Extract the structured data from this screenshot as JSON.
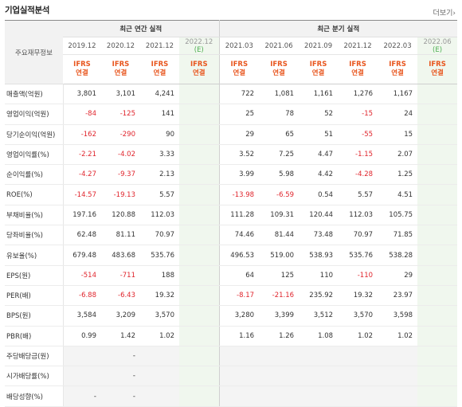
{
  "title": "기업실적분석",
  "more_label": "더보기",
  "section_annual": "최근 연간 실적",
  "section_quarter": "최근 분기 실적",
  "label_header": "주요재무정보",
  "annual_periods": [
    "2019.12",
    "2020.12",
    "2021.12",
    "2022.12"
  ],
  "quarter_periods": [
    "2021.03",
    "2021.06",
    "2021.09",
    "2021.12",
    "2022.03",
    "2022.06"
  ],
  "estimate_mark": "(E)",
  "ifrs_label": "IFRS",
  "consolidated_label": "연결",
  "rows": [
    {
      "label": "매출액(억원)",
      "annual": [
        "3,801",
        "3,101",
        "4,241",
        ""
      ],
      "quarter": [
        "722",
        "1,081",
        "1,161",
        "1,276",
        "1,167",
        ""
      ]
    },
    {
      "label": "영업이익(억원)",
      "annual": [
        "-84",
        "-125",
        "141",
        ""
      ],
      "quarter": [
        "25",
        "78",
        "52",
        "-15",
        "24",
        ""
      ]
    },
    {
      "label": "당기순이익(억원)",
      "annual": [
        "-162",
        "-290",
        "90",
        ""
      ],
      "quarter": [
        "29",
        "65",
        "51",
        "-55",
        "15",
        ""
      ]
    },
    {
      "label": "영업이익률(%)",
      "annual": [
        "-2.21",
        "-4.02",
        "3.33",
        ""
      ],
      "quarter": [
        "3.52",
        "7.25",
        "4.47",
        "-1.15",
        "2.07",
        ""
      ]
    },
    {
      "label": "순이익률(%)",
      "annual": [
        "-4.27",
        "-9.37",
        "2.13",
        ""
      ],
      "quarter": [
        "3.99",
        "5.98",
        "4.42",
        "-4.28",
        "1.25",
        ""
      ]
    },
    {
      "label": "ROE(%)",
      "annual": [
        "-14.57",
        "-19.13",
        "5.57",
        ""
      ],
      "quarter": [
        "-13.98",
        "-6.59",
        "0.54",
        "5.57",
        "4.51",
        ""
      ]
    },
    {
      "label": "부채비율(%)",
      "annual": [
        "197.16",
        "120.88",
        "112.03",
        ""
      ],
      "quarter": [
        "111.28",
        "109.31",
        "120.44",
        "112.03",
        "105.75",
        ""
      ]
    },
    {
      "label": "당좌비율(%)",
      "annual": [
        "62.48",
        "81.11",
        "70.97",
        ""
      ],
      "quarter": [
        "74.46",
        "81.44",
        "73.48",
        "70.97",
        "71.85",
        ""
      ]
    },
    {
      "label": "유보율(%)",
      "annual": [
        "679.48",
        "483.68",
        "535.76",
        ""
      ],
      "quarter": [
        "496.53",
        "519.00",
        "538.93",
        "535.76",
        "538.28",
        ""
      ]
    },
    {
      "label": "EPS(원)",
      "annual": [
        "-514",
        "-711",
        "188",
        ""
      ],
      "quarter": [
        "64",
        "125",
        "110",
        "-110",
        "29",
        ""
      ]
    },
    {
      "label": "PER(배)",
      "annual": [
        "-6.88",
        "-6.43",
        "19.32",
        ""
      ],
      "quarter": [
        "-8.17",
        "-21.16",
        "235.92",
        "19.32",
        "23.97",
        ""
      ]
    },
    {
      "label": "BPS(원)",
      "annual": [
        "3,584",
        "3,209",
        "3,570",
        ""
      ],
      "quarter": [
        "3,280",
        "3,399",
        "3,512",
        "3,570",
        "3,598",
        ""
      ]
    },
    {
      "label": "PBR(배)",
      "annual": [
        "0.99",
        "1.42",
        "1.02",
        ""
      ],
      "quarter": [
        "1.16",
        "1.26",
        "1.08",
        "1.02",
        "1.02",
        ""
      ]
    },
    {
      "label": "주당배당금(원)",
      "annual": [
        "",
        "-",
        "",
        ""
      ],
      "quarter": [
        "",
        "",
        "",
        "",
        "",
        ""
      ]
    },
    {
      "label": "시가배당률(%)",
      "annual": [
        "",
        "-",
        "",
        ""
      ],
      "quarter": [
        "",
        "",
        "",
        "",
        "",
        ""
      ]
    },
    {
      "label": "배당성향(%)",
      "annual": [
        "-",
        "-",
        "",
        ""
      ],
      "quarter": [
        "",
        "",
        "",
        "",
        "",
        ""
      ]
    }
  ]
}
